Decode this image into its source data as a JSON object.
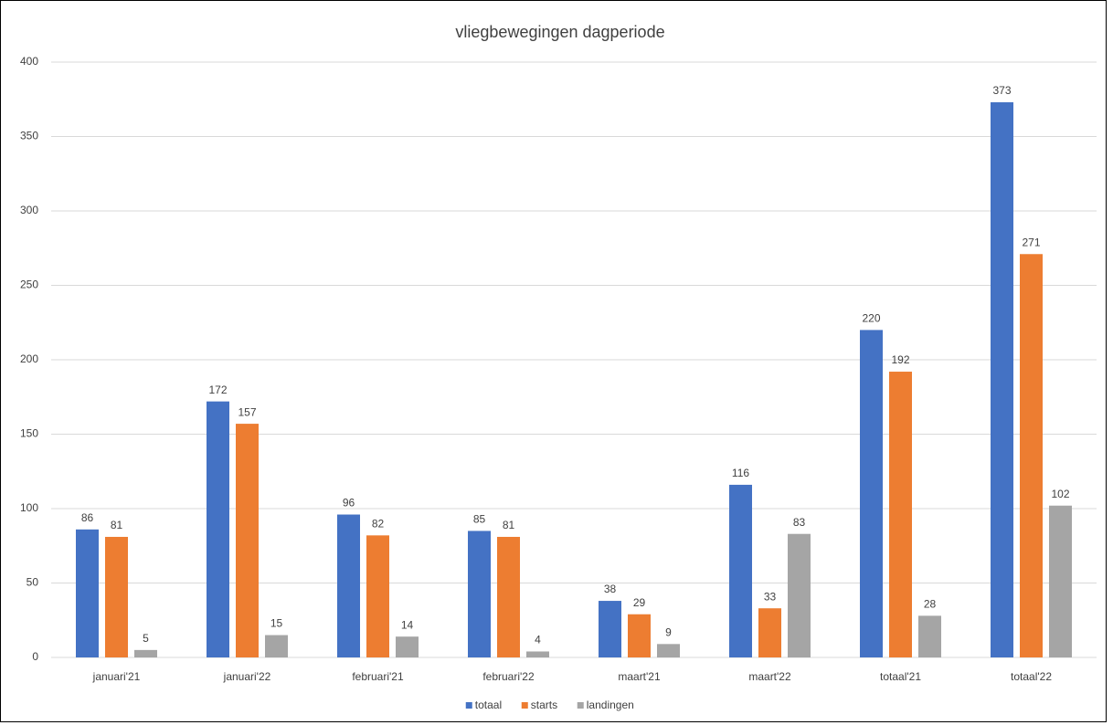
{
  "chart_data": {
    "type": "bar",
    "title": "vliegbewegingen dagperiode",
    "categories": [
      "januari'21",
      "januari'22",
      "februari'21",
      "februari'22",
      "maart'21",
      "maart'22",
      "totaal'21",
      "totaal'22"
    ],
    "series": [
      {
        "name": "totaal",
        "color": "#4472c4",
        "values": [
          86,
          172,
          96,
          85,
          38,
          116,
          220,
          373
        ]
      },
      {
        "name": "starts",
        "color": "#ed7d31",
        "values": [
          81,
          157,
          82,
          81,
          29,
          33,
          192,
          271
        ]
      },
      {
        "name": "landingen",
        "color": "#a5a5a5",
        "values": [
          5,
          15,
          14,
          4,
          9,
          83,
          28,
          102
        ]
      }
    ],
    "ylim": [
      0,
      400
    ],
    "yticks": [
      0,
      50,
      100,
      150,
      200,
      250,
      300,
      350,
      400
    ],
    "grid": true,
    "legend": "bottom"
  }
}
